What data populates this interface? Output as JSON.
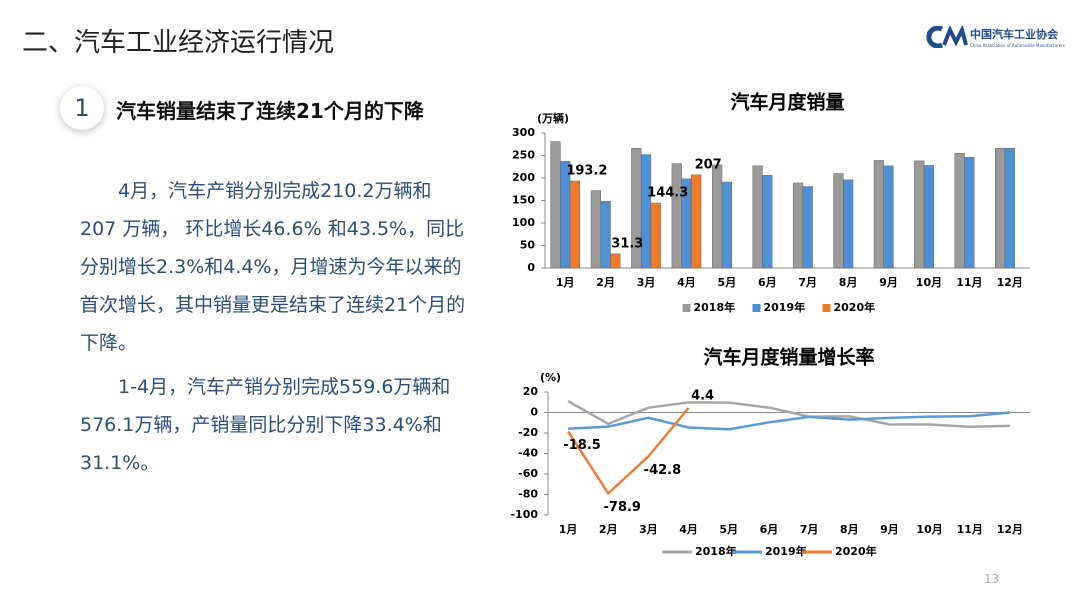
{
  "header": {
    "title": "二、汽车工业经济运行情况",
    "logo_cn": "中国汽车工业协会",
    "logo_en": "China Association of Automobile Manufacturers"
  },
  "section": {
    "number": "1",
    "title": "汽车销量结束了连续21个月的下降"
  },
  "paragraphs": [
    "4月，汽车产销分别完成210.2万辆和 207 万辆， 环比增长46.6% 和43.5%，同比分别增长2.3%和4.4%，月增速为今年以来的首次增长，其中销量更是结束了连续21个月的下降。",
    "1-4月，汽车产销分别完成559.6万辆和576.1万辆，产销量同比分别下降33.4%和31.1%。"
  ],
  "page_number": "13",
  "chart_data": [
    {
      "type": "bar",
      "title": "汽车月度销量",
      "ylabel": "(万辆)",
      "categories": [
        "1月",
        "2月",
        "3月",
        "4月",
        "5月",
        "6月",
        "7月",
        "8月",
        "9月",
        "10月",
        "11月",
        "12月"
      ],
      "ylim": [
        0,
        300
      ],
      "yticks": [
        0,
        50,
        100,
        150,
        200,
        250,
        300
      ],
      "series": [
        {
          "name": "2018年",
          "color": "#9a9a9a",
          "values": [
            281,
            172,
            266,
            232,
            229,
            227,
            189,
            210,
            239,
            238,
            255,
            266
          ]
        },
        {
          "name": "2019年",
          "color": "#4f8fd6",
          "values": [
            237,
            148,
            252,
            198,
            191,
            206,
            181,
            196,
            227,
            228,
            246,
            266
          ]
        },
        {
          "name": "2020年",
          "color": "#ef7b2a",
          "values": [
            193.2,
            31.3,
            144.3,
            207,
            null,
            null,
            null,
            null,
            null,
            null,
            null,
            null
          ],
          "show_labels": true
        }
      ]
    },
    {
      "type": "line",
      "title": "汽车月度销量增长率",
      "ylabel": "(%)",
      "categories": [
        "1月",
        "2月",
        "3月",
        "4月",
        "5月",
        "6月",
        "7月",
        "8月",
        "9月",
        "10月",
        "11月",
        "12月"
      ],
      "ylim": [
        -100,
        20
      ],
      "yticks": [
        -100,
        -80,
        -60,
        -40,
        -20,
        0,
        20
      ],
      "series": [
        {
          "name": "2018年",
          "color": "#a6a6a6",
          "values": [
            11.1,
            -11.1,
            4.7,
            9.9,
            9.6,
            4.8,
            -4,
            -3.8,
            -11.6,
            -11.7,
            -13.9,
            -13
          ]
        },
        {
          "name": "2019年",
          "color": "#5b9bd5",
          "values": [
            -15.8,
            -13.8,
            -5.2,
            -14.6,
            -16.4,
            -9.6,
            -4.3,
            -6.9,
            -5.2,
            -4,
            -3.6,
            0
          ]
        },
        {
          "name": "2020年",
          "color": "#ed7d31",
          "values": [
            -18.5,
            -78.9,
            -42.8,
            4.4,
            null,
            null,
            null,
            null,
            null,
            null,
            null,
            null
          ],
          "show_labels": true,
          "label_colors": [
            "#e02020",
            "#e02020",
            "#e02020",
            "#000000"
          ]
        }
      ]
    }
  ]
}
